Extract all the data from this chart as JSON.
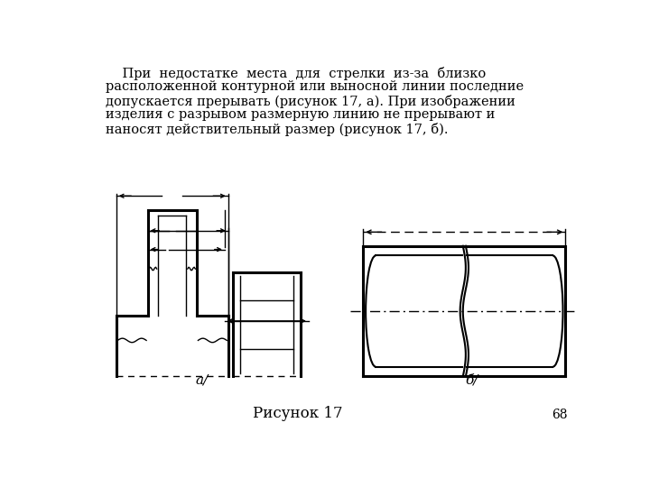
{
  "title_text": "Рисунок 17",
  "page_number": "68",
  "label_a": "а/",
  "label_b": "б/",
  "bg_color": "#ffffff",
  "line_color": "#000000",
  "text_color": "#000000",
  "fontsize_body": 10.5,
  "fontsize_label": 11,
  "fontsize_title": 12,
  "fontsize_page": 10
}
